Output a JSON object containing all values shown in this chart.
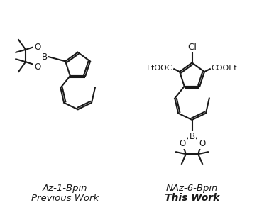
{
  "background_color": "#ffffff",
  "line_color": "#1a1a1a",
  "line_width": 1.5,
  "text_color": "#1a1a1a",
  "label1": "Az-1-Bpin",
  "label1_sub": "Previous Work",
  "label2": "NAz-6-Bpin",
  "label2_sub": "This Work",
  "label2_sub_bold": true,
  "font_size_label": 9.5,
  "font_size_atom": 8.5,
  "font_size_group": 8.0
}
